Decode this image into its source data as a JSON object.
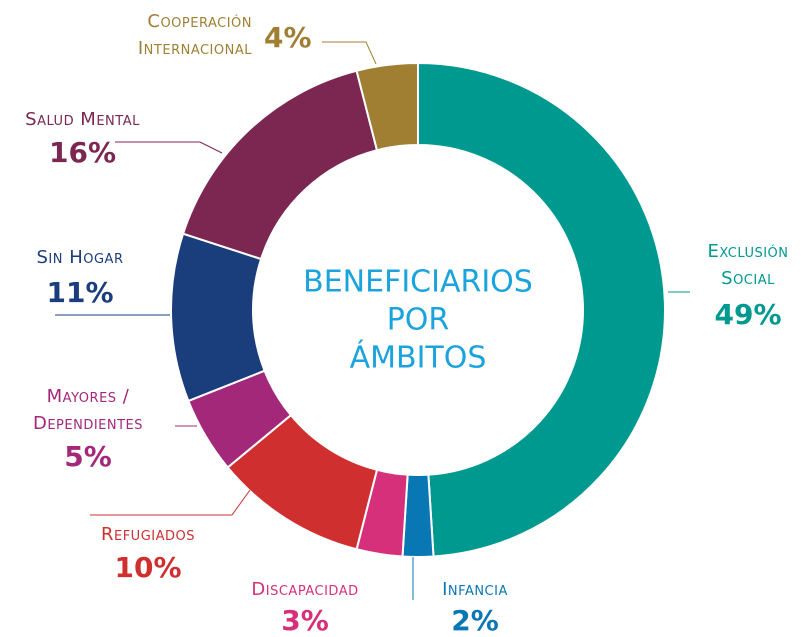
{
  "chart_data": {
    "type": "donut",
    "center_text": [
      "BENEFICIARIOS",
      "POR",
      "ÁMBITOS"
    ],
    "categories": [
      "Exclusión Social",
      "Infancia",
      "Discapacidad",
      "Refugiados",
      "Mayores / Dependientes",
      "Sin Hogar",
      "Salud Mental",
      "Cooperación Internacional"
    ],
    "values": [
      49,
      2,
      3,
      10,
      5,
      11,
      16,
      4
    ],
    "value_labels": [
      "49%",
      "2%",
      "3%",
      "10%",
      "5%",
      "11%",
      "16%",
      "4%"
    ],
    "colors": [
      "#00998f",
      "#0a77b5",
      "#d6307b",
      "#cf2f2f",
      "#a3287a",
      "#1a3d7c",
      "#7c2652",
      "#a07f32"
    ]
  }
}
